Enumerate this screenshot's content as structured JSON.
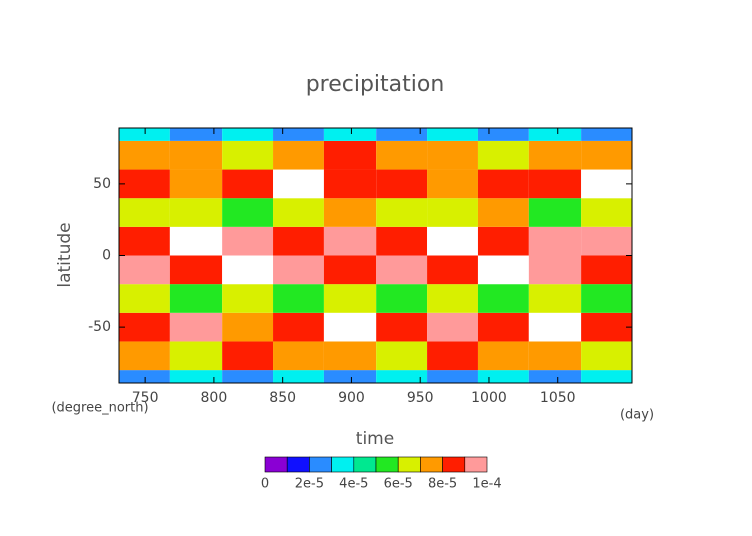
{
  "chart_data": {
    "type": "heatmap",
    "title": "precipitation",
    "xlabel": "time",
    "xunit": "(day)",
    "ylabel": "latitude",
    "yunit": "(degree_north)",
    "xlim": [
      731,
      1104
    ],
    "ylim": [
      -89,
      89
    ],
    "xticks": [
      750,
      800,
      850,
      900,
      950,
      1000,
      1050
    ],
    "yticks": [
      -50,
      0,
      50
    ],
    "x_edges": [
      731,
      768,
      806,
      843,
      880,
      918,
      955,
      992,
      1029,
      1067,
      1104
    ],
    "y_edges": [
      -89,
      -80,
      -60,
      -40,
      -20,
      0,
      20,
      40,
      60,
      80,
      89
    ],
    "z": [
      [
        2.5e-05,
        3e-05,
        2.2e-05,
        3.5e-05,
        2.8e-05,
        3.2e-05,
        2.4e-05,
        3.6e-05,
        2.6e-05,
        3.1e-05
      ],
      [
        7.5e-05,
        6.8e-05,
        8.2e-05,
        7.1e-05,
        7.9e-05,
        6.5e-05,
        8.4e-05,
        7.3e-05,
        7.8e-05,
        6.9e-05
      ],
      [
        8.6e-05,
        9.2e-05,
        7.8e-05,
        8.9e-05,
        0.000105,
        8.3e-05,
        9.4e-05,
        8.1e-05,
        0.000106,
        8.7e-05
      ],
      [
        6.2e-05,
        5.6e-05,
        6.8e-05,
        5.4e-05,
        6.1e-05,
        5.8e-05,
        6.6e-05,
        5.5e-05,
        6.3e-05,
        5.9e-05
      ],
      [
        9.1e-05,
        8.5e-05,
        0.000104,
        9.3e-05,
        8.8e-05,
        9.6e-05,
        8.6e-05,
        0.000107,
        9e-05,
        8.4e-05
      ],
      [
        8.8e-05,
        0.000106,
        9.2e-05,
        8.4e-05,
        9.5e-05,
        8.9e-05,
        0.000103,
        8.7e-05,
        9.4e-05,
        9.1e-05
      ],
      [
        6.4e-05,
        6.9e-05,
        5.8e-05,
        6.6e-05,
        7.2e-05,
        6.1e-05,
        6.7e-05,
        7e-05,
        5.9e-05,
        6.5e-05
      ],
      [
        8.4e-05,
        7.9e-05,
        8.8e-05,
        0.000104,
        8.2e-05,
        8.6e-05,
        7.7e-05,
        8.9e-05,
        8.3e-05,
        0.000105
      ],
      [
        7.2e-05,
        7.8e-05,
        6.9e-05,
        7.5e-05,
        8.1e-05,
        7e-05,
        7.6e-05,
        6.8e-05,
        7.4e-05,
        7.9e-05
      ],
      [
        3e-05,
        2.6e-05,
        3.4e-05,
        2.3e-05,
        3.1e-05,
        2.7e-05,
        3.5e-05,
        2.5e-05,
        3.2e-05,
        2.8e-05
      ]
    ],
    "levels": [
      0,
      1e-05,
      2e-05,
      3e-05,
      4e-05,
      5e-05,
      6e-05,
      7e-05,
      8e-05,
      9e-05,
      0.0001
    ],
    "colors": [
      "#8a00d4",
      "#1010ff",
      "#2a8cff",
      "#00f0f0",
      "#00e890",
      "#22e822",
      "#d8f000",
      "#ff9a00",
      "#ff1e00",
      "#ff9a9a"
    ],
    "colorbar_ticks": [
      0,
      {
        "value": 2e-05,
        "label": "2e-5"
      },
      {
        "value": 4e-05,
        "label": "4e-5"
      },
      {
        "value": 6e-05,
        "label": "6e-5"
      },
      {
        "value": 8e-05,
        "label": "8e-5"
      },
      {
        "value": 0.0001,
        "label": "1e-4"
      }
    ]
  }
}
